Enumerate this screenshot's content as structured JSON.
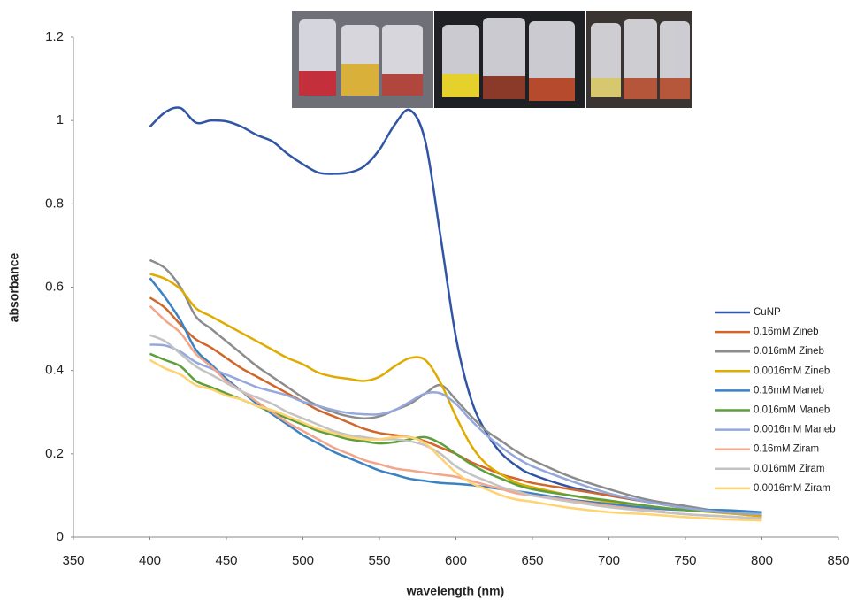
{
  "chart_data": {
    "type": "line",
    "x_label": "wavelength (nm)",
    "y_label": "absorbance",
    "x": [
      400,
      410,
      420,
      430,
      440,
      450,
      460,
      470,
      480,
      490,
      500,
      510,
      520,
      530,
      540,
      550,
      560,
      570,
      580,
      590,
      600,
      610,
      620,
      630,
      640,
      650,
      675,
      700,
      725,
      750,
      775,
      800
    ],
    "xlim": [
      350,
      850
    ],
    "xticks": [
      350,
      400,
      450,
      500,
      550,
      600,
      650,
      700,
      750,
      800,
      850
    ],
    "ylim": [
      0,
      1.2
    ],
    "yticks": [
      0,
      0.2,
      0.4,
      0.6,
      0.8,
      1,
      1.2
    ],
    "grid": false,
    "legend": "right",
    "series": [
      {
        "name": "CuNP",
        "color": "#2f55a4",
        "values": [
          0.985,
          1.02,
          1.03,
          0.995,
          1.0,
          0.998,
          0.985,
          0.965,
          0.95,
          0.92,
          0.895,
          0.875,
          0.872,
          0.875,
          0.89,
          0.93,
          0.99,
          1.025,
          0.95,
          0.72,
          0.48,
          0.33,
          0.25,
          0.2,
          0.17,
          0.15,
          0.12,
          0.1,
          0.085,
          0.07,
          0.06,
          0.055
        ]
      },
      {
        "name": "0.16mM Zineb",
        "color": "#d0662a",
        "values": [
          0.575,
          0.55,
          0.51,
          0.475,
          0.455,
          0.43,
          0.405,
          0.385,
          0.365,
          0.345,
          0.325,
          0.305,
          0.29,
          0.275,
          0.26,
          0.25,
          0.245,
          0.24,
          0.23,
          0.215,
          0.2,
          0.18,
          0.165,
          0.15,
          0.14,
          0.13,
          0.115,
          0.1,
          0.085,
          0.07,
          0.06,
          0.05
        ]
      },
      {
        "name": "0.016mM Zineb",
        "color": "#8c8c8c",
        "values": [
          0.665,
          0.645,
          0.6,
          0.53,
          0.5,
          0.47,
          0.44,
          0.41,
          0.385,
          0.36,
          0.335,
          0.315,
          0.3,
          0.29,
          0.285,
          0.29,
          0.305,
          0.32,
          0.345,
          0.365,
          0.33,
          0.29,
          0.255,
          0.23,
          0.205,
          0.185,
          0.145,
          0.115,
          0.09,
          0.075,
          0.06,
          0.05
        ]
      },
      {
        "name": "0.0016mM Zineb",
        "color": "#e0ab00",
        "values": [
          0.632,
          0.62,
          0.595,
          0.55,
          0.53,
          0.51,
          0.49,
          0.47,
          0.45,
          0.43,
          0.415,
          0.395,
          0.385,
          0.38,
          0.375,
          0.385,
          0.41,
          0.43,
          0.425,
          0.37,
          0.29,
          0.22,
          0.175,
          0.15,
          0.13,
          0.12,
          0.1,
          0.085,
          0.075,
          0.065,
          0.058,
          0.05
        ]
      },
      {
        "name": "0.16mM Maneb",
        "color": "#3a82c4",
        "values": [
          0.622,
          0.575,
          0.52,
          0.45,
          0.415,
          0.38,
          0.35,
          0.32,
          0.295,
          0.27,
          0.245,
          0.225,
          0.205,
          0.19,
          0.175,
          0.16,
          0.15,
          0.14,
          0.135,
          0.13,
          0.128,
          0.125,
          0.12,
          0.115,
          0.11,
          0.105,
          0.09,
          0.08,
          0.07,
          0.065,
          0.065,
          0.06
        ]
      },
      {
        "name": "0.016mM Maneb",
        "color": "#5f9e3c",
        "values": [
          0.44,
          0.425,
          0.41,
          0.375,
          0.36,
          0.345,
          0.33,
          0.315,
          0.3,
          0.285,
          0.27,
          0.255,
          0.245,
          0.235,
          0.23,
          0.225,
          0.228,
          0.235,
          0.24,
          0.225,
          0.2,
          0.175,
          0.155,
          0.14,
          0.125,
          0.115,
          0.1,
          0.088,
          0.075,
          0.065,
          0.06,
          0.055
        ]
      },
      {
        "name": "0.0016mM Maneb",
        "color": "#94a8dc",
        "values": [
          0.462,
          0.46,
          0.445,
          0.42,
          0.405,
          0.39,
          0.375,
          0.36,
          0.35,
          0.34,
          0.325,
          0.315,
          0.305,
          0.298,
          0.295,
          0.295,
          0.305,
          0.325,
          0.345,
          0.345,
          0.32,
          0.28,
          0.245,
          0.215,
          0.19,
          0.17,
          0.135,
          0.105,
          0.085,
          0.07,
          0.06,
          0.055
        ]
      },
      {
        "name": "0.16mM Ziram",
        "color": "#f2a68c",
        "values": [
          0.555,
          0.52,
          0.49,
          0.44,
          0.41,
          0.375,
          0.35,
          0.325,
          0.3,
          0.275,
          0.255,
          0.235,
          0.215,
          0.2,
          0.185,
          0.175,
          0.165,
          0.16,
          0.155,
          0.15,
          0.145,
          0.135,
          0.125,
          0.115,
          0.105,
          0.1,
          0.088,
          0.075,
          0.065,
          0.055,
          0.05,
          0.045
        ]
      },
      {
        "name": "0.016mM Ziram",
        "color": "#c3c3c3",
        "values": [
          0.485,
          0.47,
          0.44,
          0.41,
          0.39,
          0.37,
          0.35,
          0.335,
          0.32,
          0.3,
          0.285,
          0.27,
          0.255,
          0.245,
          0.24,
          0.235,
          0.235,
          0.23,
          0.22,
          0.2,
          0.17,
          0.15,
          0.135,
          0.12,
          0.11,
          0.1,
          0.085,
          0.072,
          0.063,
          0.055,
          0.05,
          0.045
        ]
      },
      {
        "name": "0.0016mM Ziram",
        "color": "#ffd272",
        "values": [
          0.425,
          0.405,
          0.39,
          0.365,
          0.355,
          0.34,
          0.33,
          0.315,
          0.305,
          0.29,
          0.275,
          0.26,
          0.25,
          0.24,
          0.235,
          0.235,
          0.24,
          0.24,
          0.225,
          0.19,
          0.155,
          0.13,
          0.115,
          0.1,
          0.09,
          0.085,
          0.07,
          0.06,
          0.055,
          0.048,
          0.043,
          0.04
        ]
      }
    ]
  }
}
